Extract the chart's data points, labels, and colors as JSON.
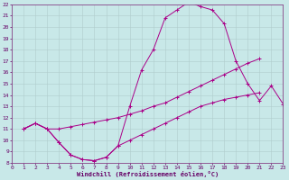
{
  "xlabel": "Windchill (Refroidissement éolien,°C)",
  "background_color": "#c8e8e8",
  "grid_color": "#b0cccc",
  "line_color": "#aa0088",
  "xlim": [
    0,
    23
  ],
  "ylim": [
    8,
    22
  ],
  "xticks": [
    0,
    1,
    2,
    3,
    4,
    5,
    6,
    7,
    8,
    9,
    10,
    11,
    12,
    13,
    14,
    15,
    16,
    17,
    18,
    19,
    20,
    21,
    22,
    23
  ],
  "yticks": [
    8,
    9,
    10,
    11,
    12,
    13,
    14,
    15,
    16,
    17,
    18,
    19,
    20,
    21,
    22
  ],
  "line1_x": [
    1,
    2,
    3,
    4,
    5,
    6,
    7,
    8,
    9,
    10,
    11,
    12,
    13,
    14,
    15,
    16,
    17,
    18,
    19,
    20,
    21,
    22,
    23
  ],
  "line1_y": [
    11.0,
    11.5,
    11.0,
    9.8,
    8.7,
    8.3,
    8.2,
    8.5,
    9.5,
    13.0,
    16.2,
    18.0,
    20.8,
    21.5,
    22.2,
    21.8,
    21.5,
    20.3,
    17.0,
    15.0,
    13.5,
    14.8,
    13.2
  ],
  "line2_x": [
    1,
    2,
    3,
    4,
    5,
    6,
    7,
    8,
    9,
    10,
    11,
    12,
    13,
    14,
    15,
    16,
    17,
    18,
    19,
    20,
    21,
    22,
    23
  ],
  "line2_y": [
    11.0,
    11.5,
    11.0,
    9.8,
    8.7,
    8.3,
    8.2,
    8.5,
    9.5,
    10.0,
    10.5,
    11.0,
    11.5,
    12.0,
    12.5,
    13.0,
    13.3,
    13.6,
    13.8,
    14.0,
    14.2,
    null,
    null
  ],
  "line3_x": [
    1,
    2,
    3,
    4,
    5,
    6,
    7,
    8,
    9,
    10,
    11,
    12,
    13,
    14,
    15,
    16,
    17,
    18,
    19,
    20,
    21,
    22,
    23
  ],
  "line3_y": [
    11.0,
    11.5,
    11.0,
    11.0,
    11.2,
    11.4,
    11.6,
    11.8,
    12.0,
    12.3,
    12.6,
    13.0,
    13.3,
    13.8,
    14.3,
    14.8,
    15.3,
    15.8,
    16.3,
    16.8,
    17.2,
    null,
    null
  ]
}
